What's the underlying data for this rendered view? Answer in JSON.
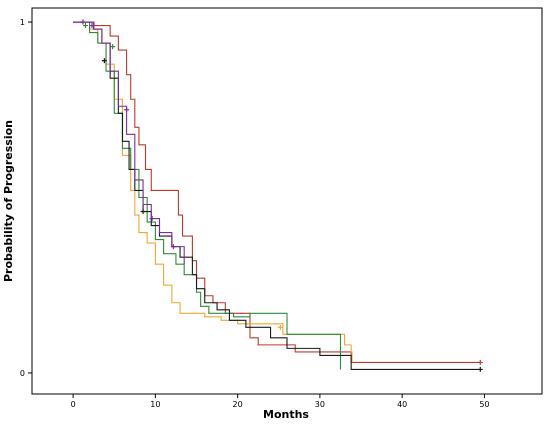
{
  "chart_data": {
    "type": "line",
    "style": "step",
    "title": "",
    "xlabel": "Months",
    "ylabel": "Probability of Progression",
    "xlim": [
      -5,
      57
    ],
    "ylim": [
      -0.06,
      1.04
    ],
    "xticks": [
      "0",
      "10",
      "20",
      "30",
      "40",
      "50"
    ],
    "yticks": [
      "0",
      "1"
    ],
    "grid": false,
    "legend": "none",
    "series": [
      {
        "color": "#c0392b",
        "points": [
          [
            0,
            1
          ],
          [
            2.5,
            1
          ],
          [
            2.5,
            0.99
          ],
          [
            4.5,
            0.96
          ],
          [
            5.5,
            0.92
          ],
          [
            6.5,
            0.85
          ],
          [
            7,
            0.78
          ],
          [
            7.5,
            0.7
          ],
          [
            8,
            0.65
          ],
          [
            8.8,
            0.58
          ],
          [
            9.5,
            0.52
          ],
          [
            12.5,
            0.52
          ],
          [
            12.8,
            0.45
          ],
          [
            13.3,
            0.39
          ],
          [
            14.5,
            0.32
          ],
          [
            15,
            0.27
          ],
          [
            16,
            0.22
          ],
          [
            17,
            0.2
          ],
          [
            18.5,
            0.17
          ],
          [
            21.5,
            0.1
          ],
          [
            22.5,
            0.08
          ],
          [
            25,
            0.08
          ],
          [
            27,
            0.06
          ],
          [
            33.5,
            0.06
          ],
          [
            33.8,
            0.03
          ],
          [
            49.5,
            0.03
          ]
        ],
        "censored": [
          [
            49.5,
            0.03
          ]
        ]
      },
      {
        "color": "#f0a830",
        "points": [
          [
            0,
            1
          ],
          [
            2,
            1
          ],
          [
            2,
            0.98
          ],
          [
            3,
            0.94
          ],
          [
            4,
            0.88
          ],
          [
            5,
            0.78
          ],
          [
            6,
            0.62
          ],
          [
            7,
            0.52
          ],
          [
            7.5,
            0.45
          ],
          [
            8,
            0.4
          ],
          [
            9,
            0.37
          ],
          [
            10,
            0.31
          ],
          [
            11,
            0.25
          ],
          [
            12,
            0.2
          ],
          [
            13,
            0.17
          ],
          [
            16,
            0.16
          ],
          [
            18,
            0.15
          ],
          [
            20,
            0.14
          ],
          [
            22,
            0.14
          ],
          [
            25,
            0.14
          ],
          [
            25.5,
            0.11
          ],
          [
            32.5,
            0.11
          ],
          [
            33,
            0.08
          ],
          [
            33.8,
            0.06
          ],
          [
            33.9,
            0.03
          ]
        ],
        "censored": [
          [
            25.2,
            0.13
          ]
        ]
      },
      {
        "color": "#2e8b3a",
        "points": [
          [
            0,
            1
          ],
          [
            2,
            1
          ],
          [
            2,
            0.97
          ],
          [
            3,
            0.94
          ],
          [
            4,
            0.86
          ],
          [
            5,
            0.74
          ],
          [
            6,
            0.64
          ],
          [
            7,
            0.58
          ],
          [
            8,
            0.5
          ],
          [
            9,
            0.43
          ],
          [
            10,
            0.38
          ],
          [
            11,
            0.34
          ],
          [
            12.5,
            0.31
          ],
          [
            13.5,
            0.28
          ],
          [
            15,
            0.23
          ],
          [
            15.5,
            0.19
          ],
          [
            16.5,
            0.17
          ],
          [
            19,
            0.17
          ],
          [
            19.5,
            0.16
          ],
          [
            21,
            0.16
          ],
          [
            21.5,
            0.17
          ],
          [
            26,
            0.11
          ],
          [
            32.5,
            0.11
          ],
          [
            32.5,
            0.01
          ]
        ],
        "censored": [
          [
            1.5,
            0.99
          ],
          [
            4.8,
            0.93
          ]
        ]
      },
      {
        "color": "#1a1a1a",
        "points": [
          [
            0,
            1
          ],
          [
            1.5,
            1
          ],
          [
            2.5,
            0.98
          ],
          [
            3.5,
            0.94
          ],
          [
            4.5,
            0.84
          ],
          [
            5.5,
            0.74
          ],
          [
            6,
            0.66
          ],
          [
            6.8,
            0.58
          ],
          [
            7.5,
            0.52
          ],
          [
            8.5,
            0.46
          ],
          [
            9.5,
            0.42
          ],
          [
            10.5,
            0.39
          ],
          [
            12,
            0.36
          ],
          [
            13,
            0.33
          ],
          [
            14.5,
            0.28
          ],
          [
            15,
            0.24
          ],
          [
            16,
            0.2
          ],
          [
            17.5,
            0.18
          ],
          [
            19,
            0.15
          ],
          [
            21,
            0.13
          ],
          [
            24,
            0.1
          ],
          [
            26,
            0.07
          ],
          [
            30,
            0.05
          ],
          [
            32,
            0.05
          ],
          [
            33.8,
            0.01
          ],
          [
            49.5,
            0.01
          ]
        ],
        "censored": [
          [
            3.8,
            0.89
          ],
          [
            8.5,
            0.46
          ],
          [
            49.5,
            0.01
          ]
        ]
      },
      {
        "color": "#7a2e9a",
        "points": [
          [
            0,
            1
          ],
          [
            2,
            1
          ],
          [
            2.5,
            0.98
          ],
          [
            3.5,
            0.94
          ],
          [
            4.5,
            0.86
          ],
          [
            5.5,
            0.76
          ],
          [
            6.5,
            0.68
          ],
          [
            7.5,
            0.55
          ],
          [
            8.5,
            0.48
          ],
          [
            9.5,
            0.44
          ],
          [
            10.5,
            0.4
          ],
          [
            12,
            0.36
          ],
          [
            13.5,
            0.31
          ]
        ],
        "censored": [
          [
            1.2,
            1
          ],
          [
            2.3,
            0.99
          ],
          [
            6.5,
            0.75
          ],
          [
            9.6,
            0.44
          ],
          [
            12.2,
            0.36
          ]
        ]
      }
    ]
  }
}
